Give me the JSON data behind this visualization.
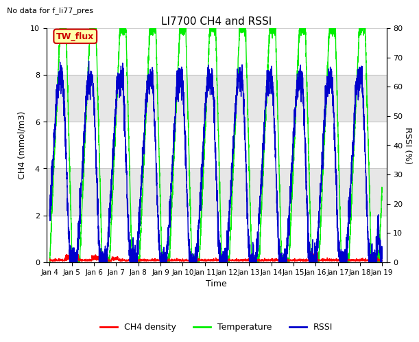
{
  "title": "LI7700 CH4 and RSSI",
  "top_left_text": "No data for f_li77_pres",
  "box_label": "TW_flux",
  "xlabel": "Time",
  "ylabel_left": "CH4 (mmol/m3)",
  "ylabel_right": "RSSI (%)",
  "ylim_left": [
    0,
    10
  ],
  "ylim_right": [
    0,
    80
  ],
  "yticks_left": [
    0,
    2,
    4,
    6,
    8,
    10
  ],
  "yticks_right": [
    0,
    10,
    20,
    30,
    40,
    50,
    60,
    70,
    80
  ],
  "xlim_days": [
    3.85,
    19.2
  ],
  "xtick_labels": [
    "Jan 4",
    "Jan 5",
    "Jan 6",
    "Jan 7",
    "Jan 8",
    "Jan 9",
    "Jan 10",
    "Jan 11",
    "Jan 12",
    "Jan 13",
    "Jan 14",
    "Jan 15",
    "Jan 16",
    "Jan 17",
    "Jan 18",
    "Jan 19"
  ],
  "xtick_positions": [
    4,
    5,
    6,
    7,
    8,
    9,
    10,
    11,
    12,
    13,
    14,
    15,
    16,
    17,
    18,
    19
  ],
  "color_ch4": "#ff0000",
  "color_temp": "#00ee00",
  "color_rssi": "#0000cc",
  "legend_labels": [
    "CH4 density",
    "Temperature",
    "RSSI"
  ],
  "bg_band_color": "#d8d8d8",
  "bg_band_alpha": 0.6,
  "band1": [
    2,
    4
  ],
  "band2": [
    6,
    8
  ]
}
